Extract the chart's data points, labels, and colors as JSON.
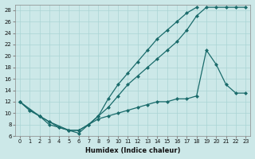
{
  "xlabel": "Humidex (Indice chaleur)",
  "xlim": [
    -0.5,
    23.5
  ],
  "ylim": [
    6,
    29
  ],
  "yticks": [
    6,
    8,
    10,
    12,
    14,
    16,
    18,
    20,
    22,
    24,
    26,
    28
  ],
  "xticks": [
    0,
    1,
    2,
    3,
    4,
    5,
    6,
    7,
    8,
    9,
    10,
    11,
    12,
    13,
    14,
    15,
    16,
    17,
    18,
    19,
    20,
    21,
    22,
    23
  ],
  "bg_color": "#cce8e8",
  "line_color": "#1a6b6b",
  "grid_color": "#aad4d4",
  "line1_x": [
    0,
    1,
    2,
    3,
    4,
    5,
    6,
    7,
    8,
    9,
    10,
    11,
    12,
    13,
    14,
    15,
    16,
    17,
    18
  ],
  "line1_y": [
    12,
    10.5,
    9.5,
    8.0,
    7.5,
    7.0,
    7.0,
    8.0,
    9.5,
    12.5,
    15.0,
    17.0,
    19.0,
    21.0,
    23.0,
    24.5,
    26.0,
    27.5,
    28.5
  ],
  "line2_x": [
    0,
    1,
    2,
    3,
    5,
    6,
    7,
    8,
    9,
    10,
    11,
    12,
    13,
    14,
    15,
    16,
    17,
    18,
    19,
    20,
    21,
    22,
    23
  ],
  "line2_y": [
    12,
    10.5,
    9.5,
    8.5,
    7.0,
    7.0,
    8.0,
    9.5,
    11.0,
    13.0,
    15.0,
    16.5,
    18.0,
    19.5,
    21.0,
    22.5,
    24.5,
    27.0,
    28.5,
    28.5,
    28.5,
    28.5,
    28.5
  ],
  "line3_x": [
    0,
    2,
    3,
    4,
    5,
    6,
    7,
    8,
    9,
    10,
    11,
    12,
    13,
    14,
    15,
    16,
    17,
    18,
    19,
    20,
    21,
    22,
    23
  ],
  "line3_y": [
    12,
    9.5,
    8.5,
    7.5,
    7.0,
    6.5,
    8.0,
    9.0,
    9.5,
    10.0,
    10.5,
    11.0,
    11.5,
    12.0,
    12.0,
    12.5,
    12.5,
    13.0,
    21.0,
    18.5,
    15.0,
    13.5,
    13.5
  ]
}
